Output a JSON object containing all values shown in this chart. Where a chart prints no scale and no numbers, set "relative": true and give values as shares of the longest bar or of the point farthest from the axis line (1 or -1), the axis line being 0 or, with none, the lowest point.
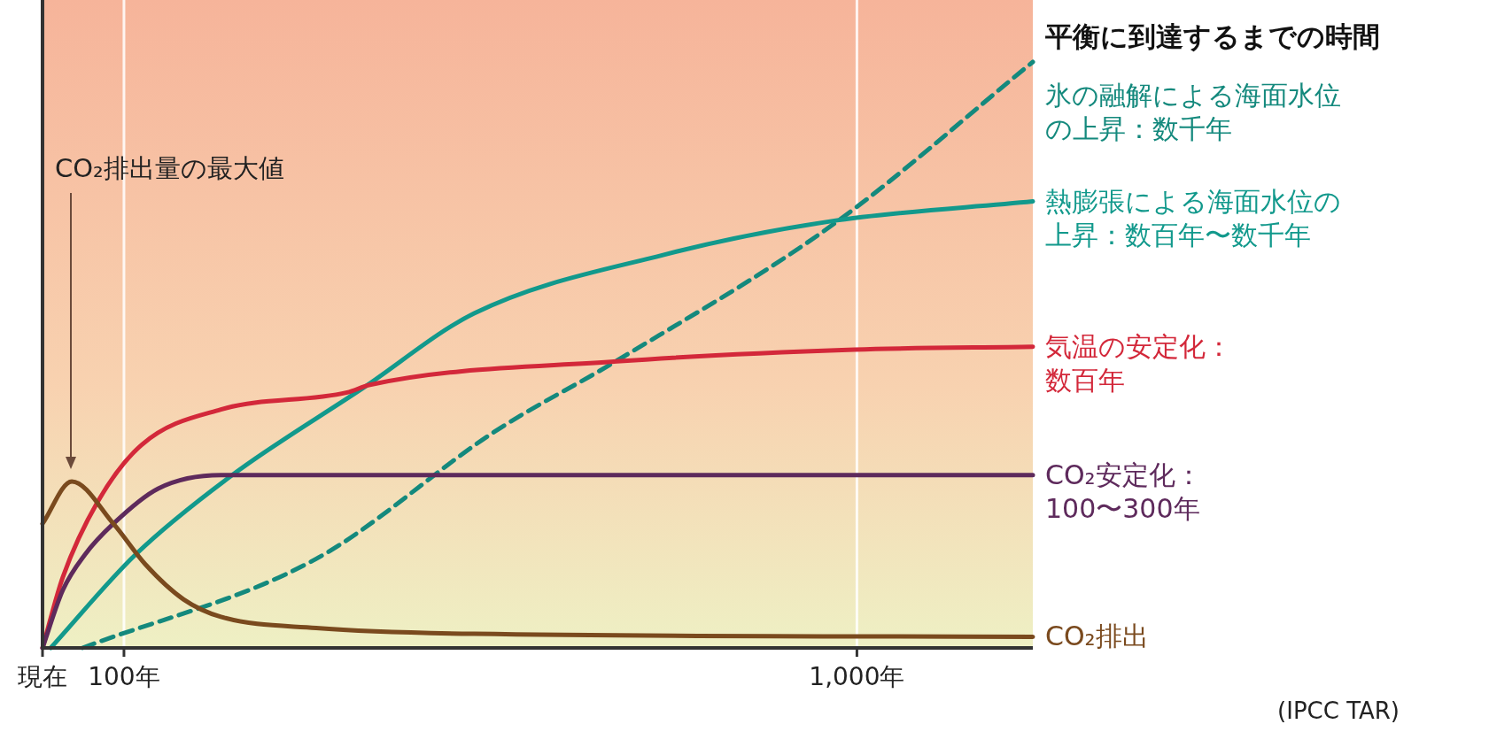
{
  "chart_data": {
    "type": "line",
    "relative": true,
    "title": "平衡に到達するまでの時間",
    "xlim": [
      0,
      1216
    ],
    "xticks": [
      {
        "value": 0,
        "label": "現在"
      },
      {
        "value": 100,
        "label": "100年"
      },
      {
        "value": 1000,
        "label": "1,000年"
      }
    ],
    "grid": "x",
    "series": [
      {
        "name": "氷の融解による海面水位の上昇：数千年",
        "color": "#14897d",
        "line_style": "dashed",
        "x": [
          49,
          336,
          556,
          705,
          973,
          1216
        ],
        "values": [
          0,
          0.152,
          0.37,
          0.49,
          0.725,
          1.0
        ]
      },
      {
        "name": "熱膨張による海面水位の上昇：数百年〜数千年",
        "color": "#12998c",
        "line_style": "solid",
        "x": [
          10,
          114,
          231,
          394,
          530,
          763,
          967,
          1216
        ],
        "values": [
          0,
          0.159,
          0.293,
          0.444,
          0.571,
          0.671,
          0.728,
          0.762
        ]
      },
      {
        "name": "気温の安定化：数百年",
        "color": "#d3283a",
        "line_style": "solid",
        "x": [
          0,
          25,
          68,
          122,
          219,
          374,
          402,
          705,
          997,
          1216
        ],
        "values": [
          0,
          0.121,
          0.25,
          0.347,
          0.407,
          0.436,
          0.449,
          0.489,
          0.509,
          0.514
        ]
      },
      {
        "name": "CO₂安定化：100〜300年",
        "color": "#5e2a5c",
        "line_style": "solid",
        "x": [
          0,
          25,
          52,
          87,
          142,
          219,
          1216
        ],
        "values": [
          0,
          0.099,
          0.159,
          0.212,
          0.272,
          0.295,
          0.295
        ]
      },
      {
        "name": "CO₂排出",
        "color": "#7a4a1e",
        "line_style": "solid",
        "x": [
          0,
          36,
          87,
          126,
          173,
          219,
          336,
          530,
          1216
        ],
        "values": [
          0.212,
          0.284,
          0.212,
          0.143,
          0.083,
          0.053,
          0.034,
          0.024,
          0.019
        ]
      }
    ],
    "annotations": [
      "CO₂排出量の最大値",
      "(IPCC TAR)"
    ]
  }
}
